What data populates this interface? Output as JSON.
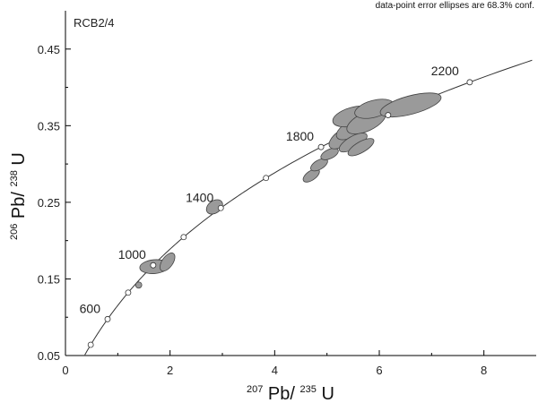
{
  "chart_data": {
    "type": "scatter",
    "subtype": "U-Pb concordia diagram with error ellipses",
    "note": "data-point error ellipses are 68.3% conf.",
    "sample_label": "RCB2/4",
    "xlabel": {
      "sup1": "207",
      "base1": "Pb/",
      "sup2": "235",
      "base2": "U"
    },
    "ylabel": {
      "sup1": "206",
      "base1": "Pb/",
      "sup2": "238",
      "base2": "U"
    },
    "xlim": [
      0,
      9
    ],
    "ylim": [
      0.05,
      0.5
    ],
    "xticks": [
      0,
      2,
      4,
      6,
      8
    ],
    "yticks": [
      0.05,
      0.15,
      0.25,
      0.35,
      0.45
    ],
    "ytick_labels": [
      "0.05",
      "0.15",
      "0.25",
      "0.35",
      "0.45"
    ],
    "grid": false,
    "concordia_ages_ma": [
      400,
      600,
      800,
      1000,
      1200,
      1400,
      1600,
      1800,
      2000,
      2200,
      2400
    ],
    "age_labels": [
      {
        "age": 600,
        "text": "600"
      },
      {
        "age": 1000,
        "text": "1000"
      },
      {
        "age": 1400,
        "text": "1400"
      },
      {
        "age": 1800,
        "text": "1800"
      },
      {
        "age": 2200,
        "text": "2200"
      }
    ],
    "ellipses": [
      {
        "x": 1.4,
        "y": 0.142,
        "rx": 0.06,
        "ry": 0.004,
        "angle_deg": 40
      },
      {
        "x": 1.7,
        "y": 0.166,
        "rx": 0.28,
        "ry": 0.009,
        "angle_deg": 5
      },
      {
        "x": 1.95,
        "y": 0.172,
        "rx": 0.2,
        "ry": 0.007,
        "angle_deg": 55
      },
      {
        "x": 2.85,
        "y": 0.244,
        "rx": 0.17,
        "ry": 0.008,
        "angle_deg": 35
      },
      {
        "x": 4.7,
        "y": 0.285,
        "rx": 0.18,
        "ry": 0.006,
        "angle_deg": 35
      },
      {
        "x": 4.85,
        "y": 0.299,
        "rx": 0.18,
        "ry": 0.006,
        "angle_deg": 30
      },
      {
        "x": 5.05,
        "y": 0.313,
        "rx": 0.18,
        "ry": 0.006,
        "angle_deg": 25
      },
      {
        "x": 5.3,
        "y": 0.334,
        "rx": 0.3,
        "ry": 0.01,
        "angle_deg": 35
      },
      {
        "x": 5.45,
        "y": 0.345,
        "rx": 0.3,
        "ry": 0.01,
        "angle_deg": 30
      },
      {
        "x": 5.5,
        "y": 0.362,
        "rx": 0.4,
        "ry": 0.012,
        "angle_deg": 15
      },
      {
        "x": 5.75,
        "y": 0.355,
        "rx": 0.4,
        "ry": 0.012,
        "angle_deg": 25
      },
      {
        "x": 5.9,
        "y": 0.372,
        "rx": 0.38,
        "ry": 0.011,
        "angle_deg": 15
      },
      {
        "x": 5.5,
        "y": 0.328,
        "rx": 0.3,
        "ry": 0.008,
        "angle_deg": 30
      },
      {
        "x": 5.65,
        "y": 0.322,
        "rx": 0.28,
        "ry": 0.007,
        "angle_deg": 30
      },
      {
        "x": 6.6,
        "y": 0.377,
        "rx": 0.6,
        "ry": 0.012,
        "angle_deg": 15
      }
    ],
    "colors": {
      "ellipse_fill": "#9a9a9a",
      "ellipse_stroke": "#444444",
      "curve": "#333333",
      "marker_fill": "#ffffff",
      "axis": "#000000"
    }
  }
}
